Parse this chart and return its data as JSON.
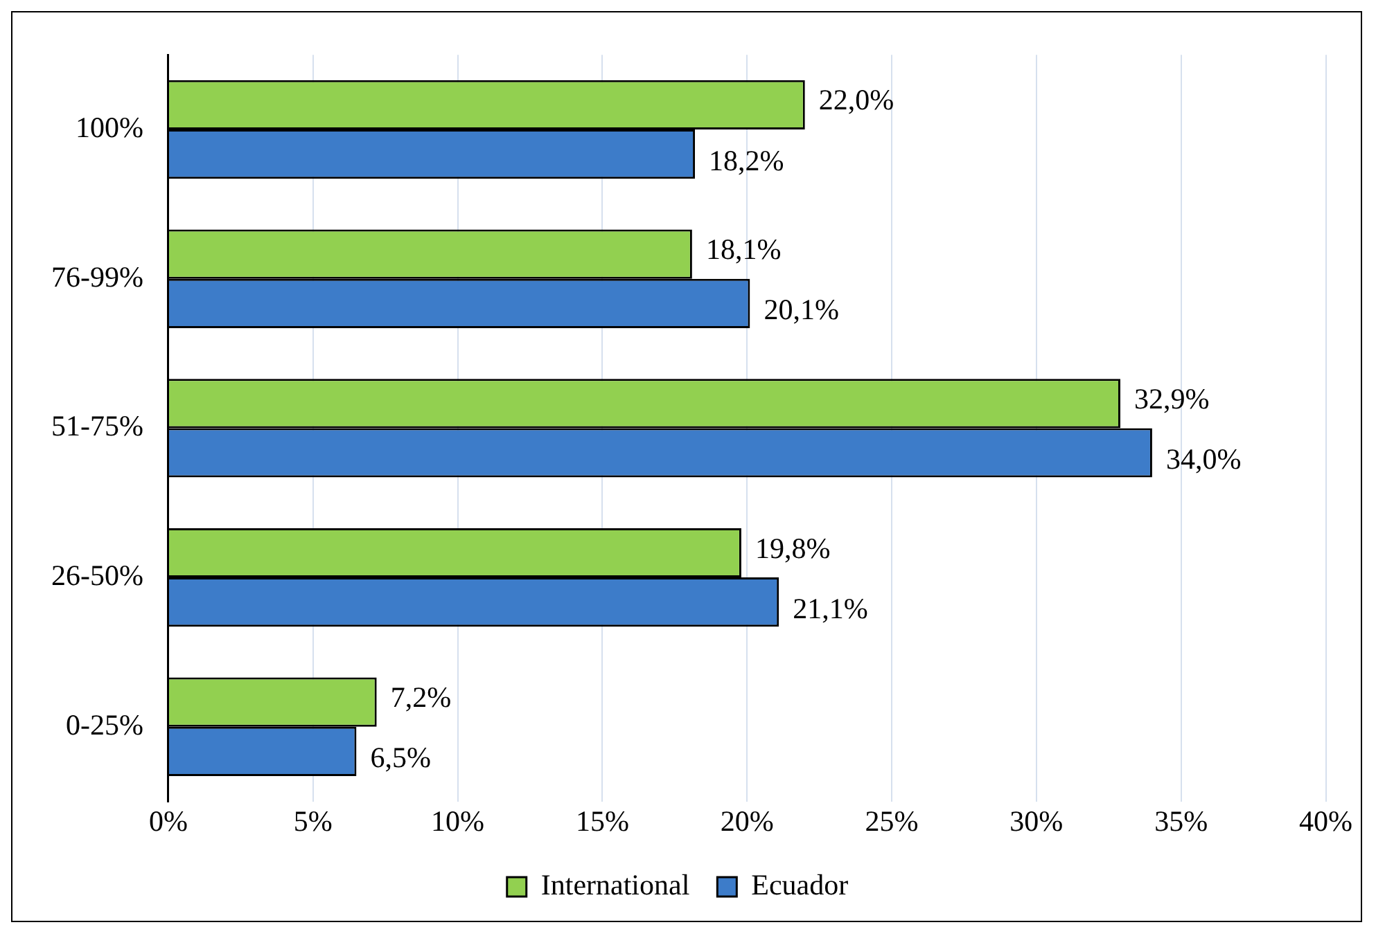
{
  "chart_data": {
    "type": "bar",
    "orientation": "horizontal",
    "categories": [
      "100%",
      "76-99%",
      "51-75%",
      "26-50%",
      "0-25%"
    ],
    "series": [
      {
        "name": "International",
        "color": "#92d050",
        "values": [
          22.0,
          18.1,
          32.9,
          19.8,
          7.2
        ],
        "value_labels": [
          "22,0%",
          "18,1%",
          "32,9%",
          "19,8%",
          "7,2%"
        ]
      },
      {
        "name": "Ecuador",
        "color": "#3d7cc9",
        "values": [
          18.2,
          20.1,
          34.0,
          21.1,
          6.5
        ],
        "value_labels": [
          "18,2%",
          "20,1%",
          "34,0%",
          "21,1%",
          "6,5%"
        ]
      }
    ],
    "xlim": [
      0,
      40
    ],
    "xticks": [
      {
        "value": 0,
        "label": "0%"
      },
      {
        "value": 5,
        "label": "5%"
      },
      {
        "value": 10,
        "label": "10%"
      },
      {
        "value": 15,
        "label": "15%"
      },
      {
        "value": 20,
        "label": "20%"
      },
      {
        "value": 25,
        "label": "25%"
      },
      {
        "value": 30,
        "label": "30%"
      },
      {
        "value": 35,
        "label": "35%"
      },
      {
        "value": 40,
        "label": "40%"
      }
    ],
    "grid": "x",
    "legend": "bottom"
  }
}
